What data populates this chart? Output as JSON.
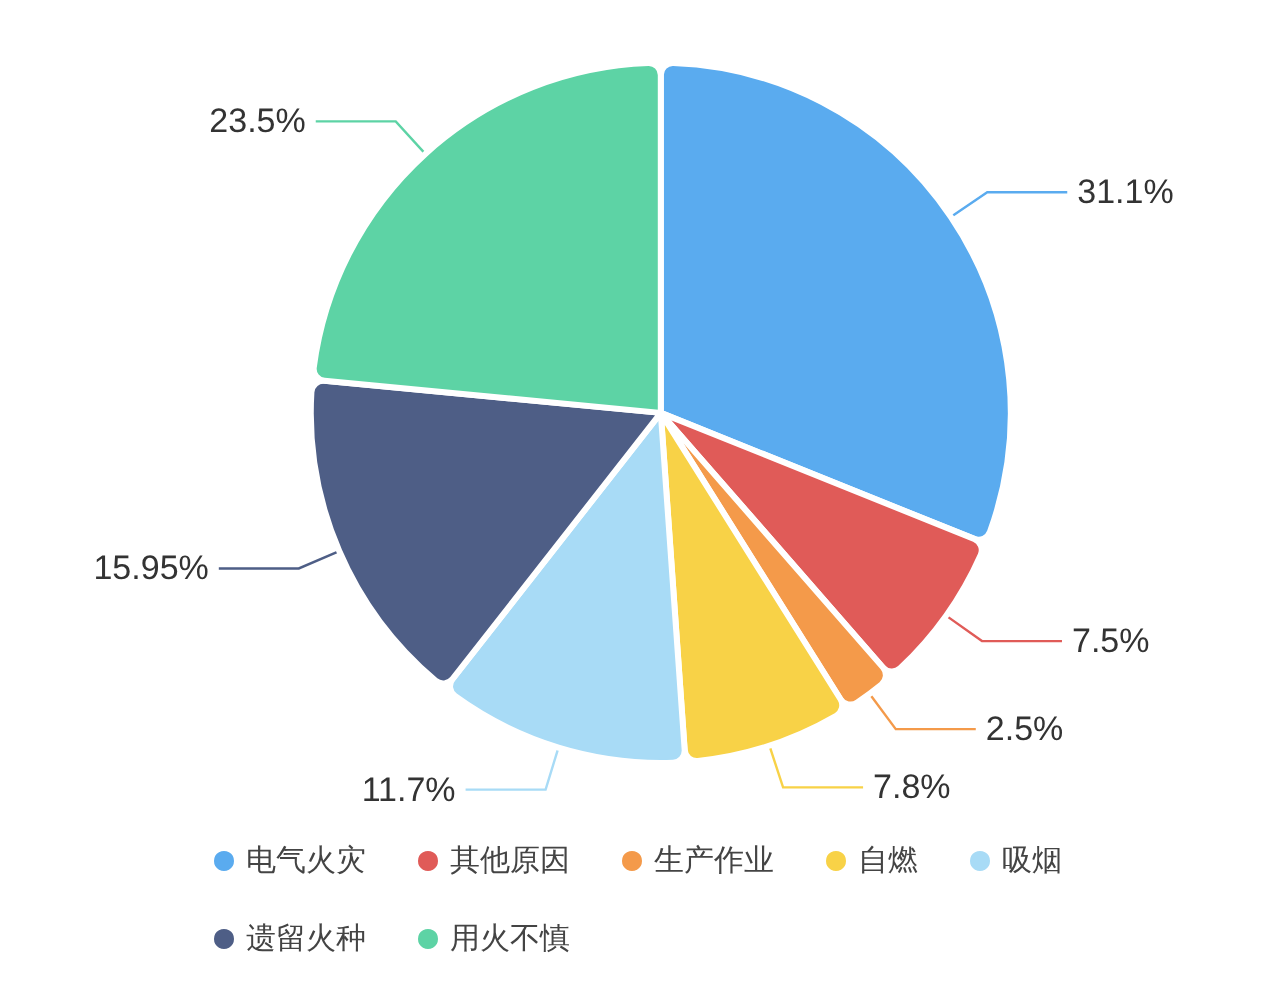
{
  "chart_data": {
    "type": "pie",
    "categories": [
      "电气火灾",
      "其他原因",
      "生产作业",
      "自燃",
      "吸烟",
      "遗留火种",
      "用火不慎"
    ],
    "values": [
      31.1,
      7.5,
      2.5,
      7.8,
      11.7,
      15.95,
      23.5
    ],
    "value_labels": [
      "31.1%",
      "7.5%",
      "2.5%",
      "7.8%",
      "11.7%",
      "15.95%",
      "23.5%"
    ],
    "colors": [
      "#5aabef",
      "#e05b58",
      "#f49a4a",
      "#f8d247",
      "#a8dbf6",
      "#4e5e86",
      "#5dd3a5"
    ],
    "legend": "bottom"
  }
}
